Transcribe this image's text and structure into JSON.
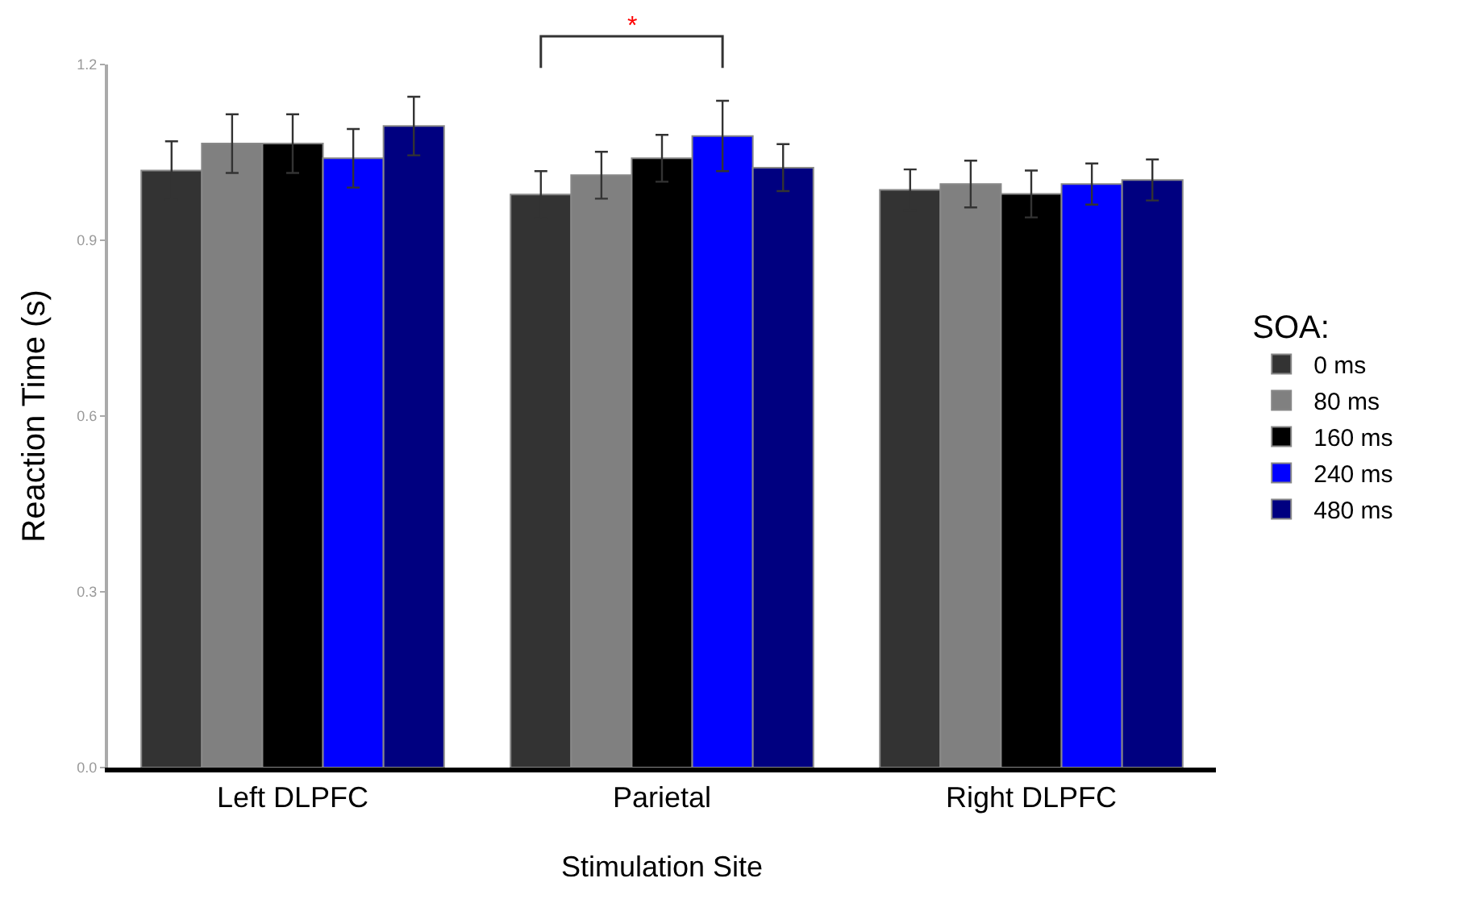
{
  "chart_data": {
    "type": "bar",
    "xlabel": "Stimulation Site",
    "ylabel": "Reaction Time (s)",
    "legend_title": "SOA:",
    "categories": [
      "Left DLPFC",
      "Parietal",
      "Right DLPFC"
    ],
    "series": [
      {
        "name": "0 ms",
        "color": "#333333",
        "values": [
          1.019,
          0.978,
          0.986
        ],
        "errors": [
          0.05,
          0.04,
          0.035
        ]
      },
      {
        "name": "80 ms",
        "color": "#808080",
        "values": [
          1.065,
          1.011,
          0.996
        ],
        "errors": [
          0.05,
          0.04,
          0.04
        ]
      },
      {
        "name": "160 ms",
        "color": "#000000",
        "values": [
          1.065,
          1.04,
          0.979
        ],
        "errors": [
          0.05,
          0.04,
          0.04
        ]
      },
      {
        "name": "240 ms",
        "color": "#0000ff",
        "values": [
          1.04,
          1.078,
          0.996
        ],
        "errors": [
          0.05,
          0.06,
          0.035
        ]
      },
      {
        "name": "480 ms",
        "color": "#000080",
        "values": [
          1.095,
          1.024,
          1.003
        ],
        "errors": [
          0.05,
          0.04,
          0.035
        ]
      }
    ],
    "ylim": [
      0,
      1.2
    ],
    "yticks": [
      {
        "value": 0,
        "label": "0.0"
      },
      {
        "value": 0.3,
        "label": "0.3"
      },
      {
        "value": 0.6,
        "label": "0.6"
      },
      {
        "value": 0.9,
        "label": "0.9"
      },
      {
        "value": 1.2,
        "label": "1.2"
      }
    ],
    "annotations": [
      "*"
    ],
    "grid": false,
    "legend": "right"
  }
}
